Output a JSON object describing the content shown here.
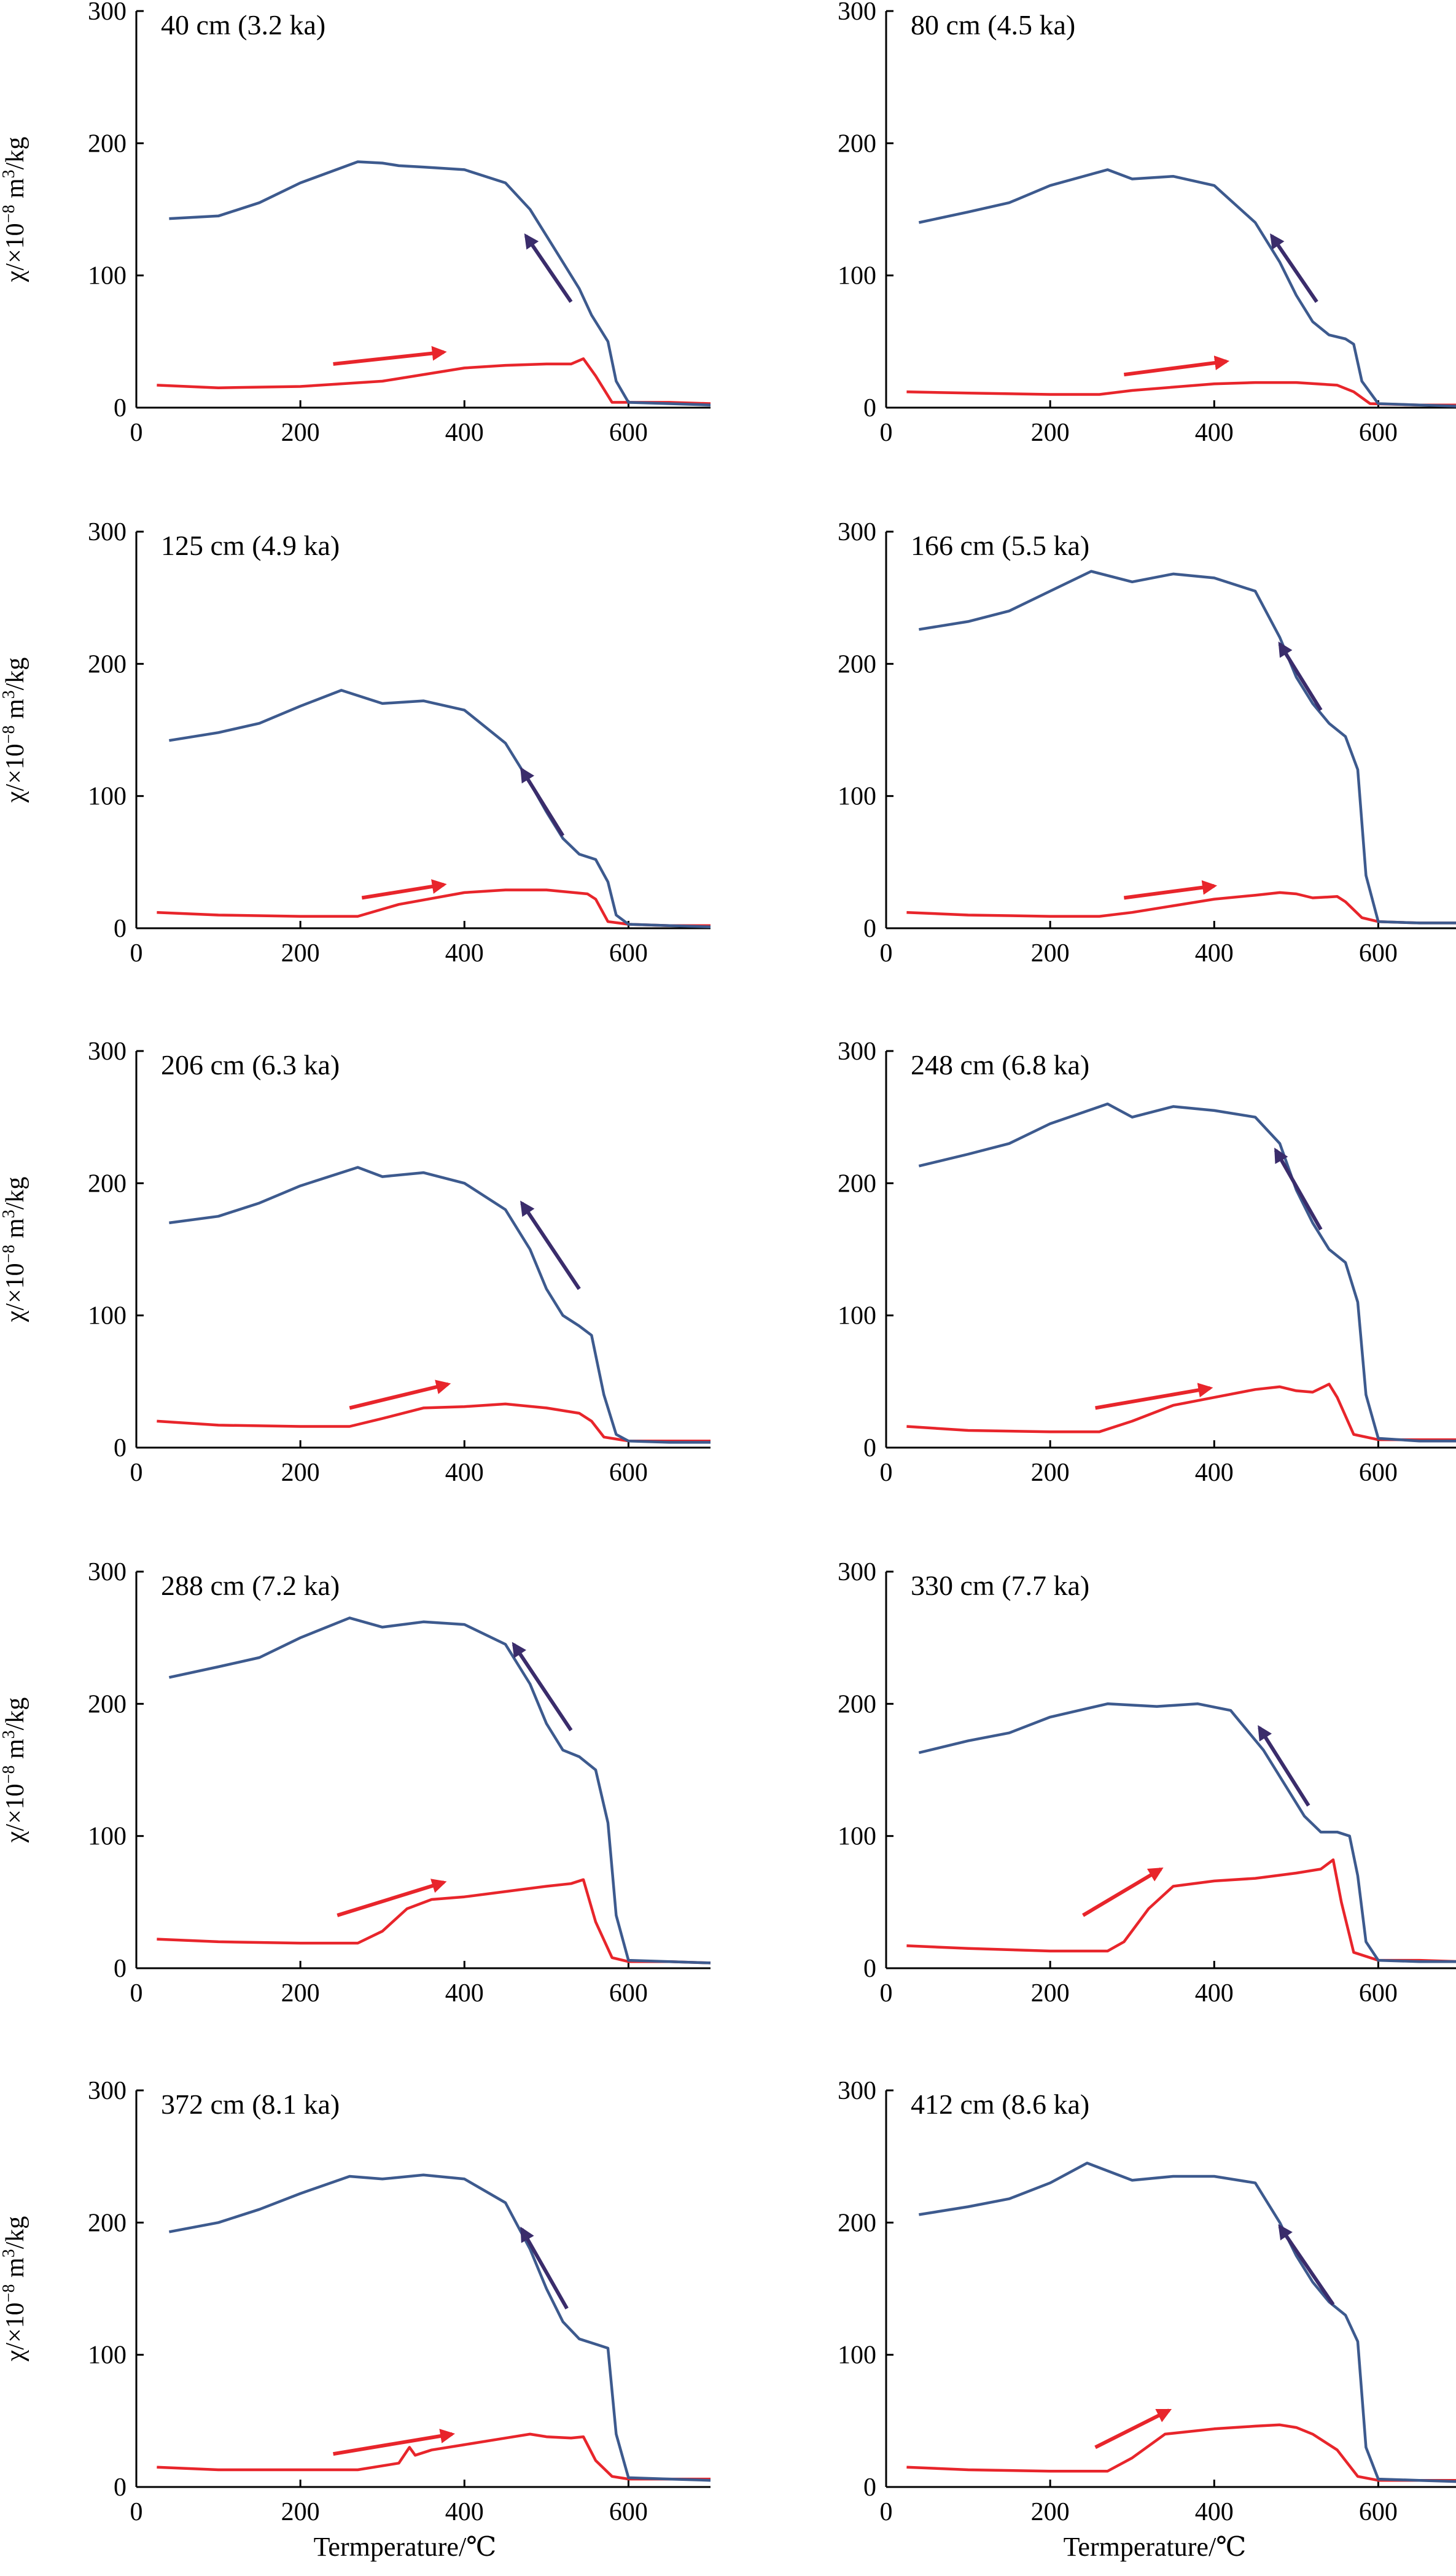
{
  "figure": {
    "xlabel": "Termperature/℃",
    "ylabel_main": "χ/×10",
    "ylabel_exp": "−8",
    "ylabel_unit": " m",
    "ylabel_unit_exp": "3",
    "ylabel_tail": "/kg"
  },
  "colors": {
    "heating": "#e8252b",
    "cooling": "#3d5a8e",
    "heating_arrow": "#e8252b",
    "cooling_arrow": "#3a2c6b"
  },
  "chart_data": [
    {
      "type": "line",
      "title": "40 cm (3.2 ka)",
      "xlim": [
        0,
        700
      ],
      "ylim": [
        0,
        300
      ],
      "xticks": [
        0,
        200,
        400,
        600
      ],
      "yticks": [
        0,
        100,
        200,
        300
      ],
      "series": [
        {
          "x": [
            25,
            100,
            200,
            300,
            400,
            450,
            500,
            530,
            545,
            560,
            580,
            600,
            650,
            700
          ],
          "y": [
            17,
            15,
            16,
            20,
            30,
            32,
            33,
            33,
            37,
            24,
            4,
            4,
            4,
            3
          ]
        },
        {
          "x": [
            700,
            650,
            600,
            585,
            575,
            565,
            555,
            540,
            520,
            500,
            480,
            450,
            400,
            350,
            320,
            300,
            270,
            200,
            150,
            100,
            40
          ],
          "y": [
            2,
            3,
            4,
            20,
            50,
            60,
            70,
            90,
            110,
            130,
            150,
            170,
            180,
            182,
            183,
            185,
            186,
            170,
            155,
            145,
            143
          ]
        }
      ]
    },
    {
      "type": "line",
      "title": "80 cm (4.5 ka)",
      "xlim": [
        0,
        700
      ],
      "ylim": [
        0,
        300
      ],
      "xticks": [
        0,
        200,
        400,
        600
      ],
      "yticks": [
        0,
        100,
        200,
        300
      ],
      "series": [
        {
          "x": [
            25,
            100,
            200,
            260,
            300,
            400,
            450,
            500,
            550,
            570,
            590,
            650,
            700
          ],
          "y": [
            12,
            11,
            10,
            10,
            13,
            18,
            19,
            19,
            17,
            12,
            3,
            2,
            2
          ]
        },
        {
          "x": [
            700,
            650,
            600,
            580,
            570,
            560,
            540,
            520,
            500,
            480,
            450,
            400,
            350,
            300,
            270,
            200,
            150,
            100,
            40
          ],
          "y": [
            1,
            2,
            3,
            20,
            48,
            52,
            55,
            65,
            85,
            110,
            140,
            168,
            175,
            173,
            180,
            168,
            155,
            148,
            140
          ]
        }
      ]
    },
    {
      "type": "line",
      "title": "125 cm (4.9 ka)",
      "xlim": [
        0,
        700
      ],
      "ylim": [
        0,
        300
      ],
      "xticks": [
        0,
        200,
        400,
        600
      ],
      "yticks": [
        0,
        100,
        200,
        300
      ],
      "series": [
        {
          "x": [
            25,
            100,
            200,
            270,
            320,
            400,
            450,
            500,
            550,
            560,
            575,
            600,
            650,
            700
          ],
          "y": [
            12,
            10,
            9,
            9,
            18,
            27,
            29,
            29,
            26,
            22,
            5,
            3,
            2,
            2
          ]
        },
        {
          "x": [
            700,
            650,
            600,
            585,
            575,
            560,
            540,
            520,
            500,
            480,
            450,
            400,
            350,
            300,
            250,
            200,
            150,
            100,
            40
          ],
          "y": [
            1,
            2,
            3,
            10,
            35,
            52,
            56,
            68,
            88,
            110,
            140,
            165,
            172,
            170,
            180,
            168,
            155,
            148,
            142
          ]
        }
      ]
    },
    {
      "type": "line",
      "title": "166 cm (5.5 ka)",
      "xlim": [
        0,
        700
      ],
      "ylim": [
        0,
        300
      ],
      "xticks": [
        0,
        200,
        400,
        600
      ],
      "yticks": [
        0,
        100,
        200,
        300
      ],
      "series": [
        {
          "x": [
            25,
            100,
            200,
            260,
            300,
            400,
            450,
            480,
            500,
            520,
            550,
            560,
            580,
            600,
            650,
            700
          ],
          "y": [
            12,
            10,
            9,
            9,
            12,
            22,
            25,
            27,
            26,
            23,
            24,
            20,
            8,
            5,
            4,
            4
          ]
        },
        {
          "x": [
            700,
            650,
            600,
            585,
            575,
            560,
            540,
            520,
            500,
            480,
            450,
            400,
            350,
            300,
            250,
            200,
            150,
            100,
            40
          ],
          "y": [
            4,
            4,
            5,
            40,
            120,
            145,
            155,
            170,
            190,
            220,
            255,
            265,
            268,
            262,
            270,
            255,
            240,
            232,
            226
          ]
        }
      ]
    },
    {
      "type": "line",
      "title": "206 cm (6.3 ka)",
      "xlim": [
        0,
        700
      ],
      "ylim": [
        0,
        300
      ],
      "xticks": [
        0,
        200,
        400,
        600
      ],
      "yticks": [
        0,
        100,
        200,
        300
      ],
      "series": [
        {
          "x": [
            25,
            100,
            200,
            260,
            300,
            350,
            400,
            450,
            500,
            540,
            555,
            570,
            600,
            650,
            700
          ],
          "y": [
            20,
            17,
            16,
            16,
            22,
            30,
            31,
            33,
            30,
            26,
            20,
            8,
            5,
            5,
            5
          ]
        },
        {
          "x": [
            700,
            650,
            600,
            585,
            570,
            555,
            540,
            520,
            500,
            480,
            450,
            400,
            350,
            300,
            270,
            200,
            150,
            100,
            40
          ],
          "y": [
            4,
            4,
            5,
            10,
            40,
            85,
            92,
            100,
            120,
            150,
            180,
            200,
            208,
            205,
            212,
            198,
            185,
            175,
            170
          ]
        }
      ]
    },
    {
      "type": "line",
      "title": "248 cm (6.8 ka)",
      "xlim": [
        0,
        700
      ],
      "ylim": [
        0,
        300
      ],
      "xticks": [
        0,
        200,
        400,
        600
      ],
      "yticks": [
        0,
        100,
        200,
        300
      ],
      "series": [
        {
          "x": [
            25,
            100,
            200,
            260,
            300,
            350,
            400,
            450,
            480,
            500,
            520,
            540,
            550,
            570,
            600,
            650,
            700
          ],
          "y": [
            16,
            13,
            12,
            12,
            20,
            32,
            38,
            44,
            46,
            43,
            42,
            48,
            38,
            10,
            6,
            6,
            6
          ]
        },
        {
          "x": [
            700,
            650,
            600,
            585,
            575,
            560,
            540,
            520,
            500,
            480,
            450,
            400,
            350,
            300,
            270,
            200,
            150,
            100,
            40
          ],
          "y": [
            5,
            5,
            7,
            40,
            110,
            140,
            150,
            170,
            195,
            230,
            250,
            255,
            258,
            250,
            260,
            245,
            230,
            222,
            213
          ]
        }
      ]
    },
    {
      "type": "line",
      "title": "288 cm (7.2 ka)",
      "xlim": [
        0,
        700
      ],
      "ylim": [
        0,
        300
      ],
      "xticks": [
        0,
        200,
        400,
        600
      ],
      "yticks": [
        0,
        100,
        200,
        300
      ],
      "series": [
        {
          "x": [
            25,
            100,
            200,
            270,
            300,
            330,
            360,
            400,
            450,
            500,
            530,
            545,
            560,
            580,
            600,
            650,
            700
          ],
          "y": [
            22,
            20,
            19,
            19,
            28,
            45,
            52,
            54,
            58,
            62,
            64,
            67,
            35,
            8,
            5,
            5,
            4
          ]
        },
        {
          "x": [
            700,
            650,
            600,
            585,
            575,
            560,
            540,
            520,
            500,
            480,
            450,
            400,
            350,
            300,
            260,
            200,
            150,
            100,
            40
          ],
          "y": [
            4,
            5,
            6,
            40,
            110,
            150,
            160,
            165,
            185,
            215,
            245,
            260,
            262,
            258,
            265,
            250,
            235,
            228,
            220
          ]
        }
      ]
    },
    {
      "type": "line",
      "title": "330 cm (7.7 ka)",
      "xlim": [
        0,
        700
      ],
      "ylim": [
        0,
        300
      ],
      "xticks": [
        0,
        200,
        400,
        600
      ],
      "yticks": [
        0,
        100,
        200,
        300
      ],
      "series": [
        {
          "x": [
            25,
            100,
            200,
            270,
            290,
            320,
            350,
            400,
            450,
            500,
            530,
            545,
            555,
            570,
            600,
            650,
            700
          ],
          "y": [
            17,
            15,
            13,
            13,
            20,
            45,
            62,
            66,
            68,
            72,
            75,
            82,
            50,
            12,
            6,
            6,
            5
          ]
        },
        {
          "x": [
            700,
            650,
            600,
            585,
            575,
            565,
            550,
            530,
            510,
            490,
            460,
            420,
            380,
            330,
            270,
            200,
            150,
            100,
            40
          ],
          "y": [
            5,
            5,
            6,
            20,
            70,
            100,
            103,
            103,
            115,
            135,
            165,
            195,
            200,
            198,
            200,
            190,
            178,
            172,
            163
          ]
        }
      ]
    },
    {
      "type": "line",
      "title": "372 cm (8.1 ka)",
      "xlim": [
        0,
        700
      ],
      "ylim": [
        0,
        300
      ],
      "xticks": [
        0,
        200,
        400,
        600
      ],
      "yticks": [
        0,
        100,
        200,
        300
      ],
      "series": [
        {
          "x": [
            25,
            100,
            200,
            270,
            320,
            333,
            340,
            360,
            400,
            450,
            480,
            500,
            530,
            545,
            560,
            580,
            600,
            650,
            700
          ],
          "y": [
            15,
            13,
            13,
            13,
            18,
            30,
            24,
            28,
            32,
            37,
            40,
            38,
            37,
            38,
            20,
            8,
            6,
            6,
            6
          ]
        },
        {
          "x": [
            700,
            650,
            600,
            585,
            575,
            560,
            540,
            520,
            500,
            480,
            450,
            400,
            350,
            300,
            260,
            200,
            150,
            100,
            40
          ],
          "y": [
            5,
            6,
            7,
            40,
            105,
            108,
            112,
            125,
            150,
            180,
            215,
            233,
            236,
            233,
            235,
            222,
            210,
            200,
            193
          ]
        }
      ]
    },
    {
      "type": "line",
      "title": "412 cm (8.6 ka)",
      "xlim": [
        0,
        700
      ],
      "ylim": [
        0,
        300
      ],
      "xticks": [
        0,
        200,
        400,
        600
      ],
      "yticks": [
        0,
        100,
        200,
        300
      ],
      "series": [
        {
          "x": [
            25,
            100,
            200,
            270,
            300,
            340,
            400,
            450,
            480,
            500,
            520,
            550,
            575,
            600,
            650,
            700
          ],
          "y": [
            15,
            13,
            12,
            12,
            22,
            40,
            44,
            46,
            47,
            45,
            40,
            28,
            8,
            5,
            5,
            5
          ]
        },
        {
          "x": [
            700,
            650,
            600,
            585,
            575,
            560,
            540,
            520,
            500,
            480,
            450,
            400,
            350,
            300,
            245,
            200,
            150,
            100,
            40
          ],
          "y": [
            4,
            5,
            6,
            30,
            110,
            130,
            140,
            155,
            175,
            200,
            230,
            235,
            235,
            232,
            245,
            230,
            218,
            212,
            206
          ]
        }
      ]
    }
  ]
}
